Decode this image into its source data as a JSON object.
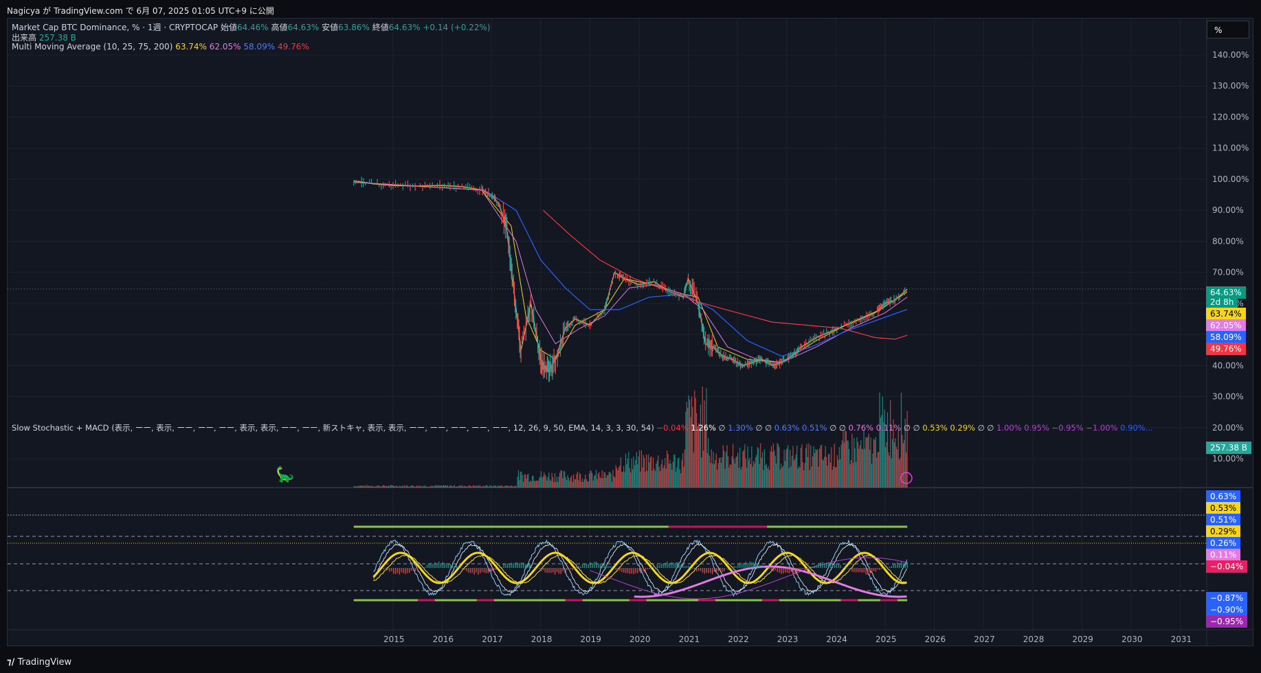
{
  "header": {
    "publish_note": "Nagicya が TradingView.com で 6月 07, 2025 01:05 UTC+9 に公開"
  },
  "legend": {
    "symbol": "Market Cap BTC Dominance, % · 1週 · CRYPTOCAP",
    "open_label": "始値",
    "open": "64.46%",
    "high_label": "高値",
    "high": "64.63%",
    "low_label": "安値",
    "low": "63.86%",
    "close_label": "終値",
    "close": "64.63%",
    "change": "+0.14 (+0.22%)",
    "volume_label": "出来高",
    "volume": "257.38 B",
    "mma_label": "Multi Moving Average (10, 25, 75, 200)",
    "mma_values": [
      "63.74%",
      "62.05%",
      "58.09%",
      "49.76%"
    ]
  },
  "unit_button": "%",
  "osc_legend": {
    "label": "Slow Stochastic + MACD (表示, ーー, 表示, ーー, ーー, ーー, 表示, 表示, ーー, ーー, 新ストキャ, 表示, 表示, ーー, ーー, ーー, ーー, ーー, 12, 26, 9, 50, EMA, 14, 3, 3, 30, 54)",
    "v1": "−0.04%",
    "v2": "1.26%",
    "sym1": "∅",
    "v3": "1.30%",
    "sym2": "∅ ∅",
    "v4": "0.63%",
    "v5": "0.51%",
    "sym3": "∅ ∅",
    "v6": "0.76%",
    "v7": "0.11%",
    "sym4": "∅ ∅",
    "v8": "0.53%",
    "v9": "0.29%",
    "sym5": "∅ ∅",
    "v10": "1.00%",
    "v11": "0.95%",
    "v12": "−0.95%",
    "v13": "−1.00%",
    "v14": "0.90%..."
  },
  "price_badges": {
    "last": "64.63%",
    "countdown": "2d 8h",
    "ma10": "63.74%",
    "ma25": "62.05%",
    "ma75": "58.09%",
    "ma200": "49.76%",
    "volume": "257.38 B"
  },
  "osc_badges": {
    "b1": "0.63%",
    "b2": "0.53%",
    "b3": "0.51%",
    "b4": "0.29%",
    "b5": "0.26%",
    "b6": "0.11%",
    "b7": "−0.04%",
    "b8": "−0.87%",
    "b9": "−0.90%",
    "b10": "−0.95%"
  },
  "footer": {
    "brand": "TradingView"
  },
  "colors": {
    "up": "#26a69a",
    "down": "#ef5350",
    "ma10": "#f7d518",
    "ma25": "#e27be3",
    "ma75": "#2962ff",
    "ma200": "#f23645"
  },
  "chart_data": {
    "type": "line",
    "title": "Market Cap BTC Dominance, % · 1週 · CRYPTOCAP",
    "x_axis": {
      "ticks": [
        "2015",
        "2016",
        "2017",
        "2018",
        "2019",
        "2020",
        "2021",
        "2022",
        "2023",
        "2024",
        "2025",
        "2026",
        "2027",
        "2028",
        "2029",
        "2030",
        "2031"
      ]
    },
    "y_axis": {
      "ticks": [
        "140.00%",
        "130.00%",
        "120.00%",
        "110.00%",
        "100.00%",
        "90.00%",
        "80.00%",
        "70.00%",
        "60.00%",
        "50.00%",
        "40.00%",
        "30.00%",
        "20.00%",
        "10.00%"
      ],
      "range": [
        0,
        145
      ]
    },
    "series": [
      {
        "name": "BTC Dominance",
        "x": [
          2014.2,
          2014.6,
          2015.0,
          2015.5,
          2016.0,
          2016.4,
          2016.8,
          2017.0,
          2017.15,
          2017.3,
          2017.45,
          2017.6,
          2017.8,
          2018.0,
          2018.15,
          2018.3,
          2018.5,
          2018.7,
          2019.0,
          2019.3,
          2019.5,
          2019.7,
          2020.0,
          2020.3,
          2020.6,
          2020.9,
          2021.0,
          2021.2,
          2021.35,
          2021.5,
          2021.7,
          2021.9,
          2022.1,
          2022.3,
          2022.5,
          2022.7,
          2022.9,
          2023.1,
          2023.3,
          2023.6,
          2023.9,
          2024.2,
          2024.5,
          2024.8,
          2025.0,
          2025.2,
          2025.45
        ],
        "y": [
          99.5,
          98.5,
          98,
          97.8,
          98,
          97.6,
          96.5,
          95,
          92,
          85,
          65,
          45,
          60,
          42,
          38,
          42,
          52,
          55,
          53,
          58,
          70,
          68,
          66,
          67,
          64,
          62,
          68,
          60,
          47,
          46,
          43,
          42,
          40,
          41,
          42,
          40,
          41,
          43,
          46,
          49,
          51,
          53,
          55,
          57,
          60,
          61,
          64.63
        ]
      },
      {
        "name": "MA10",
        "x": [
          2014.2,
          2016.8,
          2017.4,
          2017.7,
          2018.0,
          2018.3,
          2018.7,
          2019.3,
          2019.7,
          2020.3,
          2020.9,
          2021.2,
          2021.6,
          2022.2,
          2022.9,
          2023.6,
          2024.2,
          2024.9,
          2025.45
        ],
        "y": [
          99,
          96.5,
          85,
          56,
          45,
          42,
          53,
          58,
          68,
          66,
          63,
          62,
          46,
          42,
          41,
          48,
          53,
          58,
          63.74
        ]
      },
      {
        "name": "MA25",
        "x": [
          2014.2,
          2016.8,
          2017.5,
          2017.9,
          2018.3,
          2018.8,
          2019.3,
          2019.8,
          2020.3,
          2020.9,
          2021.3,
          2021.8,
          2022.4,
          2022.9,
          2023.6,
          2024.3,
          2025.0,
          2025.45
        ],
        "y": [
          99,
          96.5,
          80,
          58,
          47,
          52,
          56,
          65,
          66,
          63,
          58,
          46,
          42,
          41,
          46,
          52,
          57,
          62.05
        ]
      },
      {
        "name": "MA75",
        "x": [
          2016.8,
          2017.5,
          2018.0,
          2018.5,
          2019.0,
          2019.6,
          2020.2,
          2020.9,
          2021.5,
          2022.2,
          2022.9,
          2023.5,
          2024.2,
          2024.9,
          2025.45
        ],
        "y": [
          97,
          90,
          74,
          65,
          58,
          58,
          62,
          63,
          58,
          48,
          43,
          46,
          51,
          55,
          58.09
        ]
      },
      {
        "name": "MA200",
        "x": [
          2018.05,
          2018.6,
          2019.2,
          2019.9,
          2020.6,
          2021.3,
          2022.0,
          2022.7,
          2023.4,
          2024.1,
          2024.8,
          2025.2,
          2025.45
        ],
        "y": [
          90,
          82,
          74,
          68,
          64,
          60,
          57,
          54,
          53,
          52,
          49,
          48.5,
          49.76
        ]
      }
    ]
  }
}
